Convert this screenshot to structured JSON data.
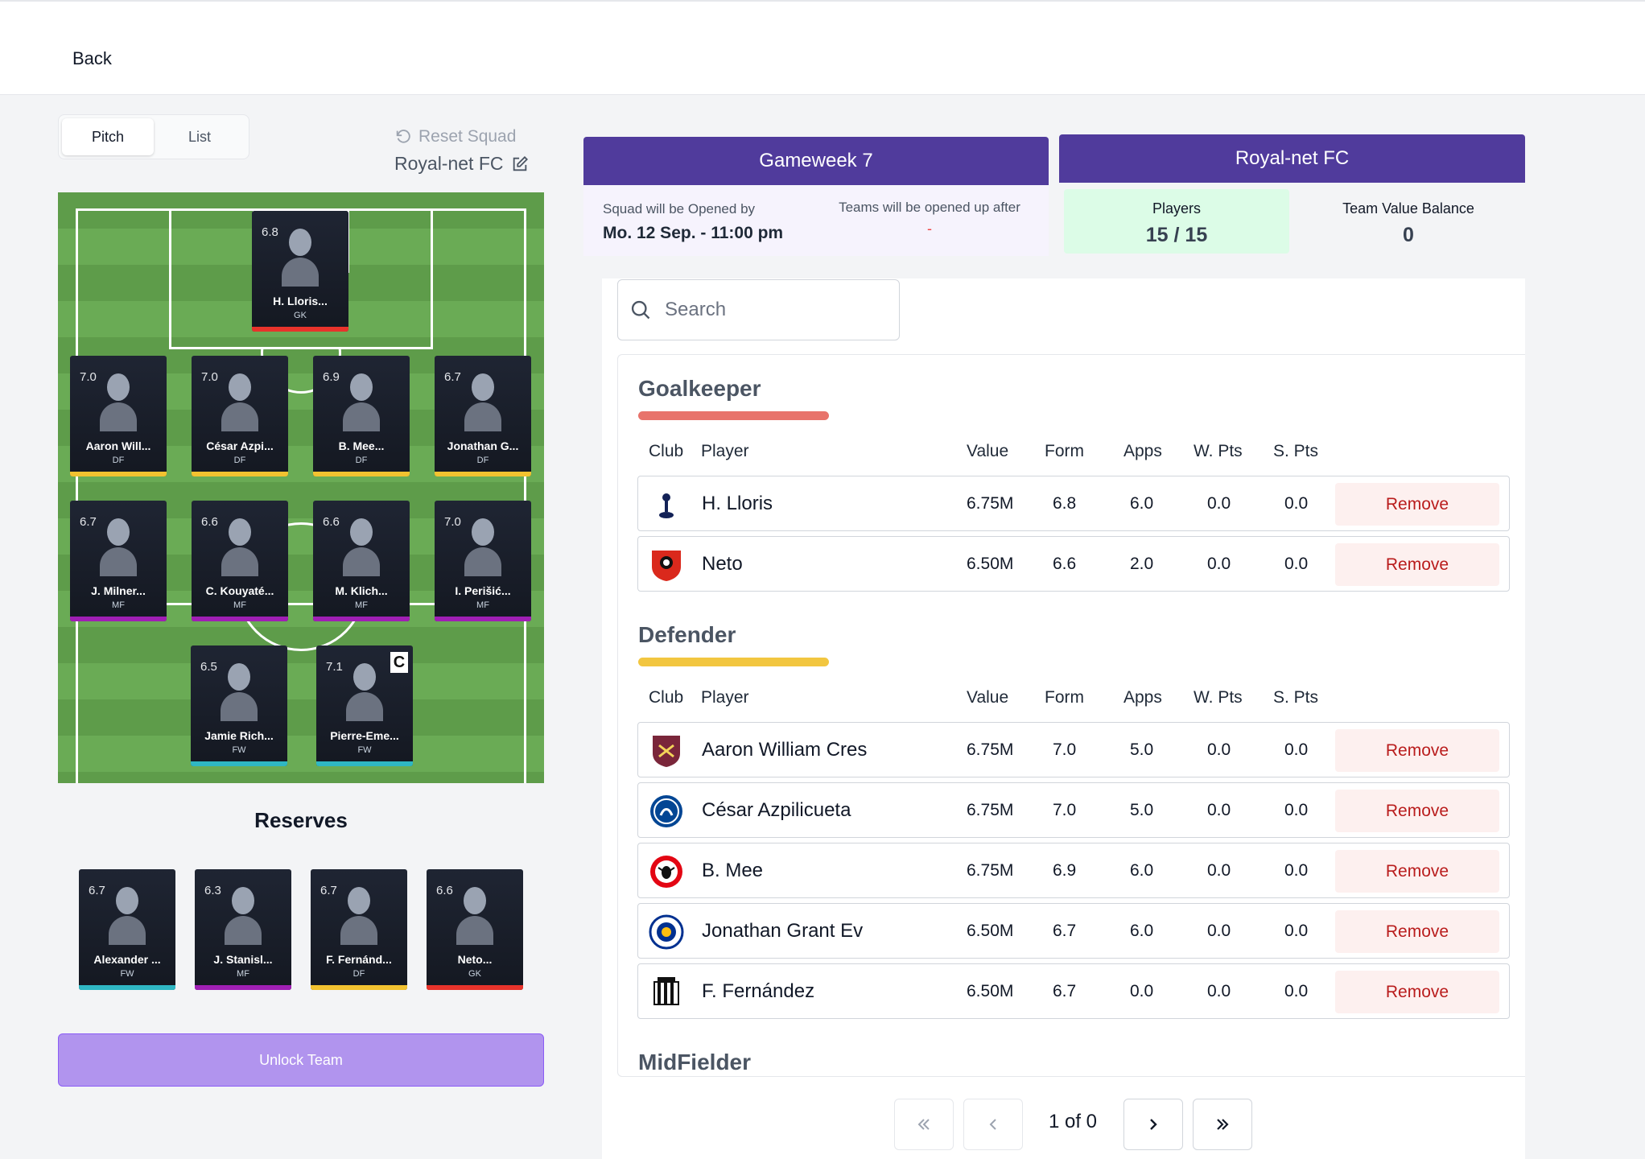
{
  "nav": {
    "back_label": "Back"
  },
  "left": {
    "view_tabs": [
      "Pitch",
      "List"
    ],
    "reset_label": "Reset Squad",
    "squad_name": "Royal-net FC",
    "reserves_title": "Reserves",
    "unlock_label": "Unlock Team"
  },
  "position_colors": {
    "GK": "#e8332b",
    "DF": "#f2c230",
    "MF": "#a01fb4",
    "FW": "#2fb7c3"
  },
  "pitch_players": [
    {
      "rating": "6.8",
      "name": "H. Lloris...",
      "pos": "GK"
    },
    {
      "rating": "7.0",
      "name": "Aaron Will...",
      "pos": "DF"
    },
    {
      "rating": "7.0",
      "name": "César Azpi...",
      "pos": "DF"
    },
    {
      "rating": "6.9",
      "name": "B. Mee...",
      "pos": "DF"
    },
    {
      "rating": "6.7",
      "name": "Jonathan G...",
      "pos": "DF"
    },
    {
      "rating": "6.7",
      "name": "J. Milner...",
      "pos": "MF"
    },
    {
      "rating": "6.6",
      "name": "C. Kouyaté...",
      "pos": "MF"
    },
    {
      "rating": "6.6",
      "name": "M. Klich...",
      "pos": "MF"
    },
    {
      "rating": "7.0",
      "name": "I. Perišić...",
      "pos": "MF"
    },
    {
      "rating": "6.5",
      "name": "Jamie Rich...",
      "pos": "FW"
    },
    {
      "rating": "7.1",
      "name": "Pierre-Eme...",
      "pos": "FW",
      "captain": "C"
    }
  ],
  "reserves": [
    {
      "rating": "6.7",
      "name": "Alexander ...",
      "pos": "FW"
    },
    {
      "rating": "6.3",
      "name": "J. Stanisl...",
      "pos": "MF"
    },
    {
      "rating": "6.7",
      "name": "F. Fernánd...",
      "pos": "DF"
    },
    {
      "rating": "6.6",
      "name": "Neto...",
      "pos": "GK"
    }
  ],
  "gameweek": {
    "title": "Gameweek 7",
    "open_label": "Squad will be Opened by",
    "open_value": "Mo. 12 Sep. - 11:00 pm",
    "teams_label": "Teams will be opened up after",
    "teams_value": "-"
  },
  "team": {
    "title": "Royal-net FC",
    "players_label": "Players",
    "players_value": "15 / 15",
    "balance_label": "Team Value Balance",
    "balance_value": "0"
  },
  "search": {
    "placeholder": "Search"
  },
  "columns": [
    "Club",
    "Player",
    "Value",
    "Form",
    "Apps",
    "W. Pts",
    "S. Pts"
  ],
  "remove_label": "Remove",
  "groups": [
    {
      "title": "Goalkeeper",
      "color": "#e8736b",
      "players": [
        {
          "club": "tottenham-crest-icon",
          "name": "H. Lloris",
          "value": "6.75M",
          "form": "6.8",
          "apps": "6.0",
          "wpts": "0.0",
          "spts": "0.0"
        },
        {
          "club": "bournemouth-crest-icon",
          "name": "Neto",
          "value": "6.50M",
          "form": "6.6",
          "apps": "2.0",
          "wpts": "0.0",
          "spts": "0.0"
        }
      ]
    },
    {
      "title": "Defender",
      "color": "#f2c640",
      "players": [
        {
          "club": "west-ham-crest-icon",
          "name": "Aaron William Cres",
          "value": "6.75M",
          "form": "7.0",
          "apps": "5.0",
          "wpts": "0.0",
          "spts": "0.0"
        },
        {
          "club": "chelsea-crest-icon",
          "name": "César Azpilicueta",
          "value": "6.75M",
          "form": "7.0",
          "apps": "5.0",
          "wpts": "0.0",
          "spts": "0.0"
        },
        {
          "club": "brentford-crest-icon",
          "name": "B. Mee",
          "value": "6.75M",
          "form": "6.9",
          "apps": "6.0",
          "wpts": "0.0",
          "spts": "0.0"
        },
        {
          "club": "leicester-crest-icon",
          "name": "Jonathan Grant Ev",
          "value": "6.50M",
          "form": "6.7",
          "apps": "6.0",
          "wpts": "0.0",
          "spts": "0.0"
        },
        {
          "club": "newcastle-crest-icon",
          "name": "F. Fernández",
          "value": "6.50M",
          "form": "6.7",
          "apps": "0.0",
          "wpts": "0.0",
          "spts": "0.0"
        }
      ]
    },
    {
      "title": "MidFielder",
      "color": "#8e6ae8",
      "players": []
    }
  ],
  "pagination": {
    "label": "1 of 0"
  }
}
